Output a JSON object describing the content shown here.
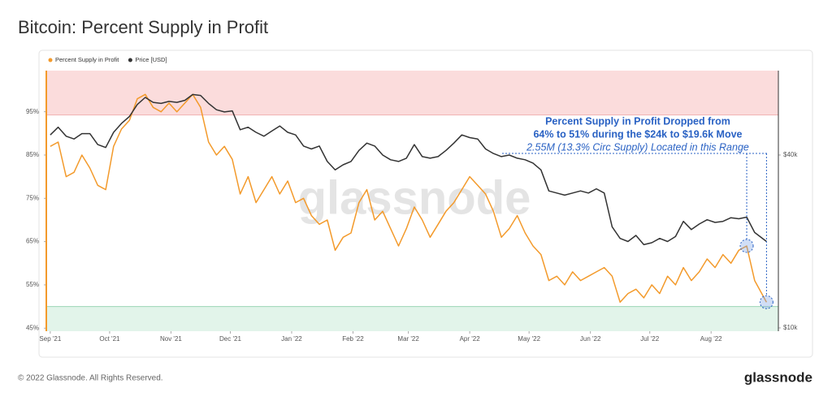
{
  "title": "Bitcoin: Percent Supply in Profit",
  "chart_data": {
    "type": "line",
    "x": [
      0,
      4,
      8,
      12,
      16,
      20,
      24,
      28,
      32,
      36,
      40,
      44,
      48,
      52,
      56,
      60,
      64,
      68,
      72,
      76,
      80,
      84,
      88,
      92,
      96,
      100,
      104,
      108,
      112,
      116,
      120,
      124,
      128,
      132,
      136,
      140,
      144,
      148,
      152,
      156,
      160,
      164,
      168,
      172,
      176,
      180,
      184,
      188,
      192,
      196,
      200,
      204,
      208,
      212,
      216,
      220,
      224,
      228,
      232,
      236,
      240,
      244,
      248,
      252,
      256,
      260,
      264,
      268,
      272,
      276,
      280,
      284,
      288,
      292,
      296,
      300,
      304,
      308,
      312,
      316,
      320,
      324,
      328,
      332,
      336,
      340,
      344,
      348,
      352,
      356,
      362
    ],
    "xlim": [
      -2,
      368
    ],
    "xticks": [
      {
        "value": 0,
        "label": "Sep '21"
      },
      {
        "value": 30,
        "label": "Oct '21"
      },
      {
        "value": 61,
        "label": "Nov '21"
      },
      {
        "value": 91,
        "label": "Dec '21"
      },
      {
        "value": 122,
        "label": "Jan '22"
      },
      {
        "value": 153,
        "label": "Feb '22"
      },
      {
        "value": 181,
        "label": "Mar '22"
      },
      {
        "value": 212,
        "label": "Apr '22"
      },
      {
        "value": 242,
        "label": "May '22"
      },
      {
        "value": 273,
        "label": "Jun '22"
      },
      {
        "value": 303,
        "label": "Jul '22"
      },
      {
        "value": 334,
        "label": "Aug '22"
      }
    ],
    "ylim": [
      44.3,
      104.5
    ],
    "yticks": [
      {
        "value": 45,
        "label": "45%"
      },
      {
        "value": 55,
        "label": "55%"
      },
      {
        "value": 65,
        "label": "65%"
      },
      {
        "value": 75,
        "label": "75%"
      },
      {
        "value": 85,
        "label": "85%"
      },
      {
        "value": 95,
        "label": "95%"
      }
    ],
    "y2lim": [
      9740,
      78700
    ],
    "y2scale": "log",
    "y2ticks": [
      {
        "value": 10000,
        "label": "$10k"
      },
      {
        "value": 40000,
        "label": "$40k"
      }
    ],
    "series": [
      {
        "name": "Percent Supply in Profit",
        "color": "#f39a2b",
        "values": [
          87,
          88,
          80,
          81,
          85,
          82,
          78,
          77,
          87,
          91,
          93,
          98,
          99,
          96,
          95,
          97,
          95,
          97,
          99,
          96,
          88,
          85,
          87,
          84,
          76,
          80,
          74,
          77,
          80,
          76,
          79,
          74,
          75,
          71,
          69,
          70,
          63,
          66,
          67,
          74,
          77,
          70,
          72,
          68,
          64,
          68,
          73,
          70,
          66,
          69,
          72,
          74,
          77,
          80,
          78,
          76,
          72,
          66,
          68,
          71,
          67,
          64,
          62,
          56,
          57,
          55,
          58,
          56,
          57,
          58,
          59,
          57,
          51,
          53,
          54,
          52,
          55,
          53,
          57,
          55,
          59,
          56,
          58,
          61,
          59,
          62,
          60,
          63,
          64,
          56,
          51
        ]
      },
      {
        "name": "Price [USD]",
        "color": "#333333",
        "axis": "y2",
        "values": [
          47000,
          50000,
          46500,
          45500,
          47500,
          47500,
          43500,
          42500,
          48000,
          51500,
          54500,
          60000,
          63500,
          61000,
          60500,
          61500,
          61000,
          62000,
          65000,
          64500,
          60500,
          57500,
          56500,
          57000,
          49000,
          50000,
          48000,
          46500,
          48500,
          50500,
          48000,
          47000,
          43000,
          42000,
          43000,
          38000,
          35500,
          37000,
          38000,
          41500,
          44000,
          43000,
          40000,
          38500,
          38000,
          39000,
          43500,
          39500,
          39000,
          39500,
          41500,
          44000,
          47000,
          46000,
          45500,
          42000,
          40500,
          39500,
          40000,
          39000,
          38500,
          37500,
          35500,
          30000,
          29500,
          29000,
          29500,
          30000,
          29500,
          30500,
          29500,
          22500,
          20500,
          20000,
          21000,
          19500,
          19800,
          20500,
          20000,
          20800,
          23500,
          22000,
          23000,
          23800,
          23300,
          23500,
          24200,
          24000,
          24300,
          21500,
          20000
        ]
      }
    ],
    "bands": [
      {
        "above": 95,
        "color": "#fbdcdc"
      },
      {
        "below": 50,
        "color": "#e2f4ea"
      }
    ],
    "watermark": "glassnode",
    "annotation": {
      "lines": [
        "Percent Supply in Profit Dropped from",
        "64% to 51% during the $24k to $19.6k Move",
        "2.55M (13.3% Circ Supply) Located in this Range"
      ],
      "highlight_x": [
        352,
        362
      ]
    }
  },
  "footer": {
    "copyright": "© 2022 Glassnode. All Rights Reserved.",
    "logo": "glassnode"
  }
}
